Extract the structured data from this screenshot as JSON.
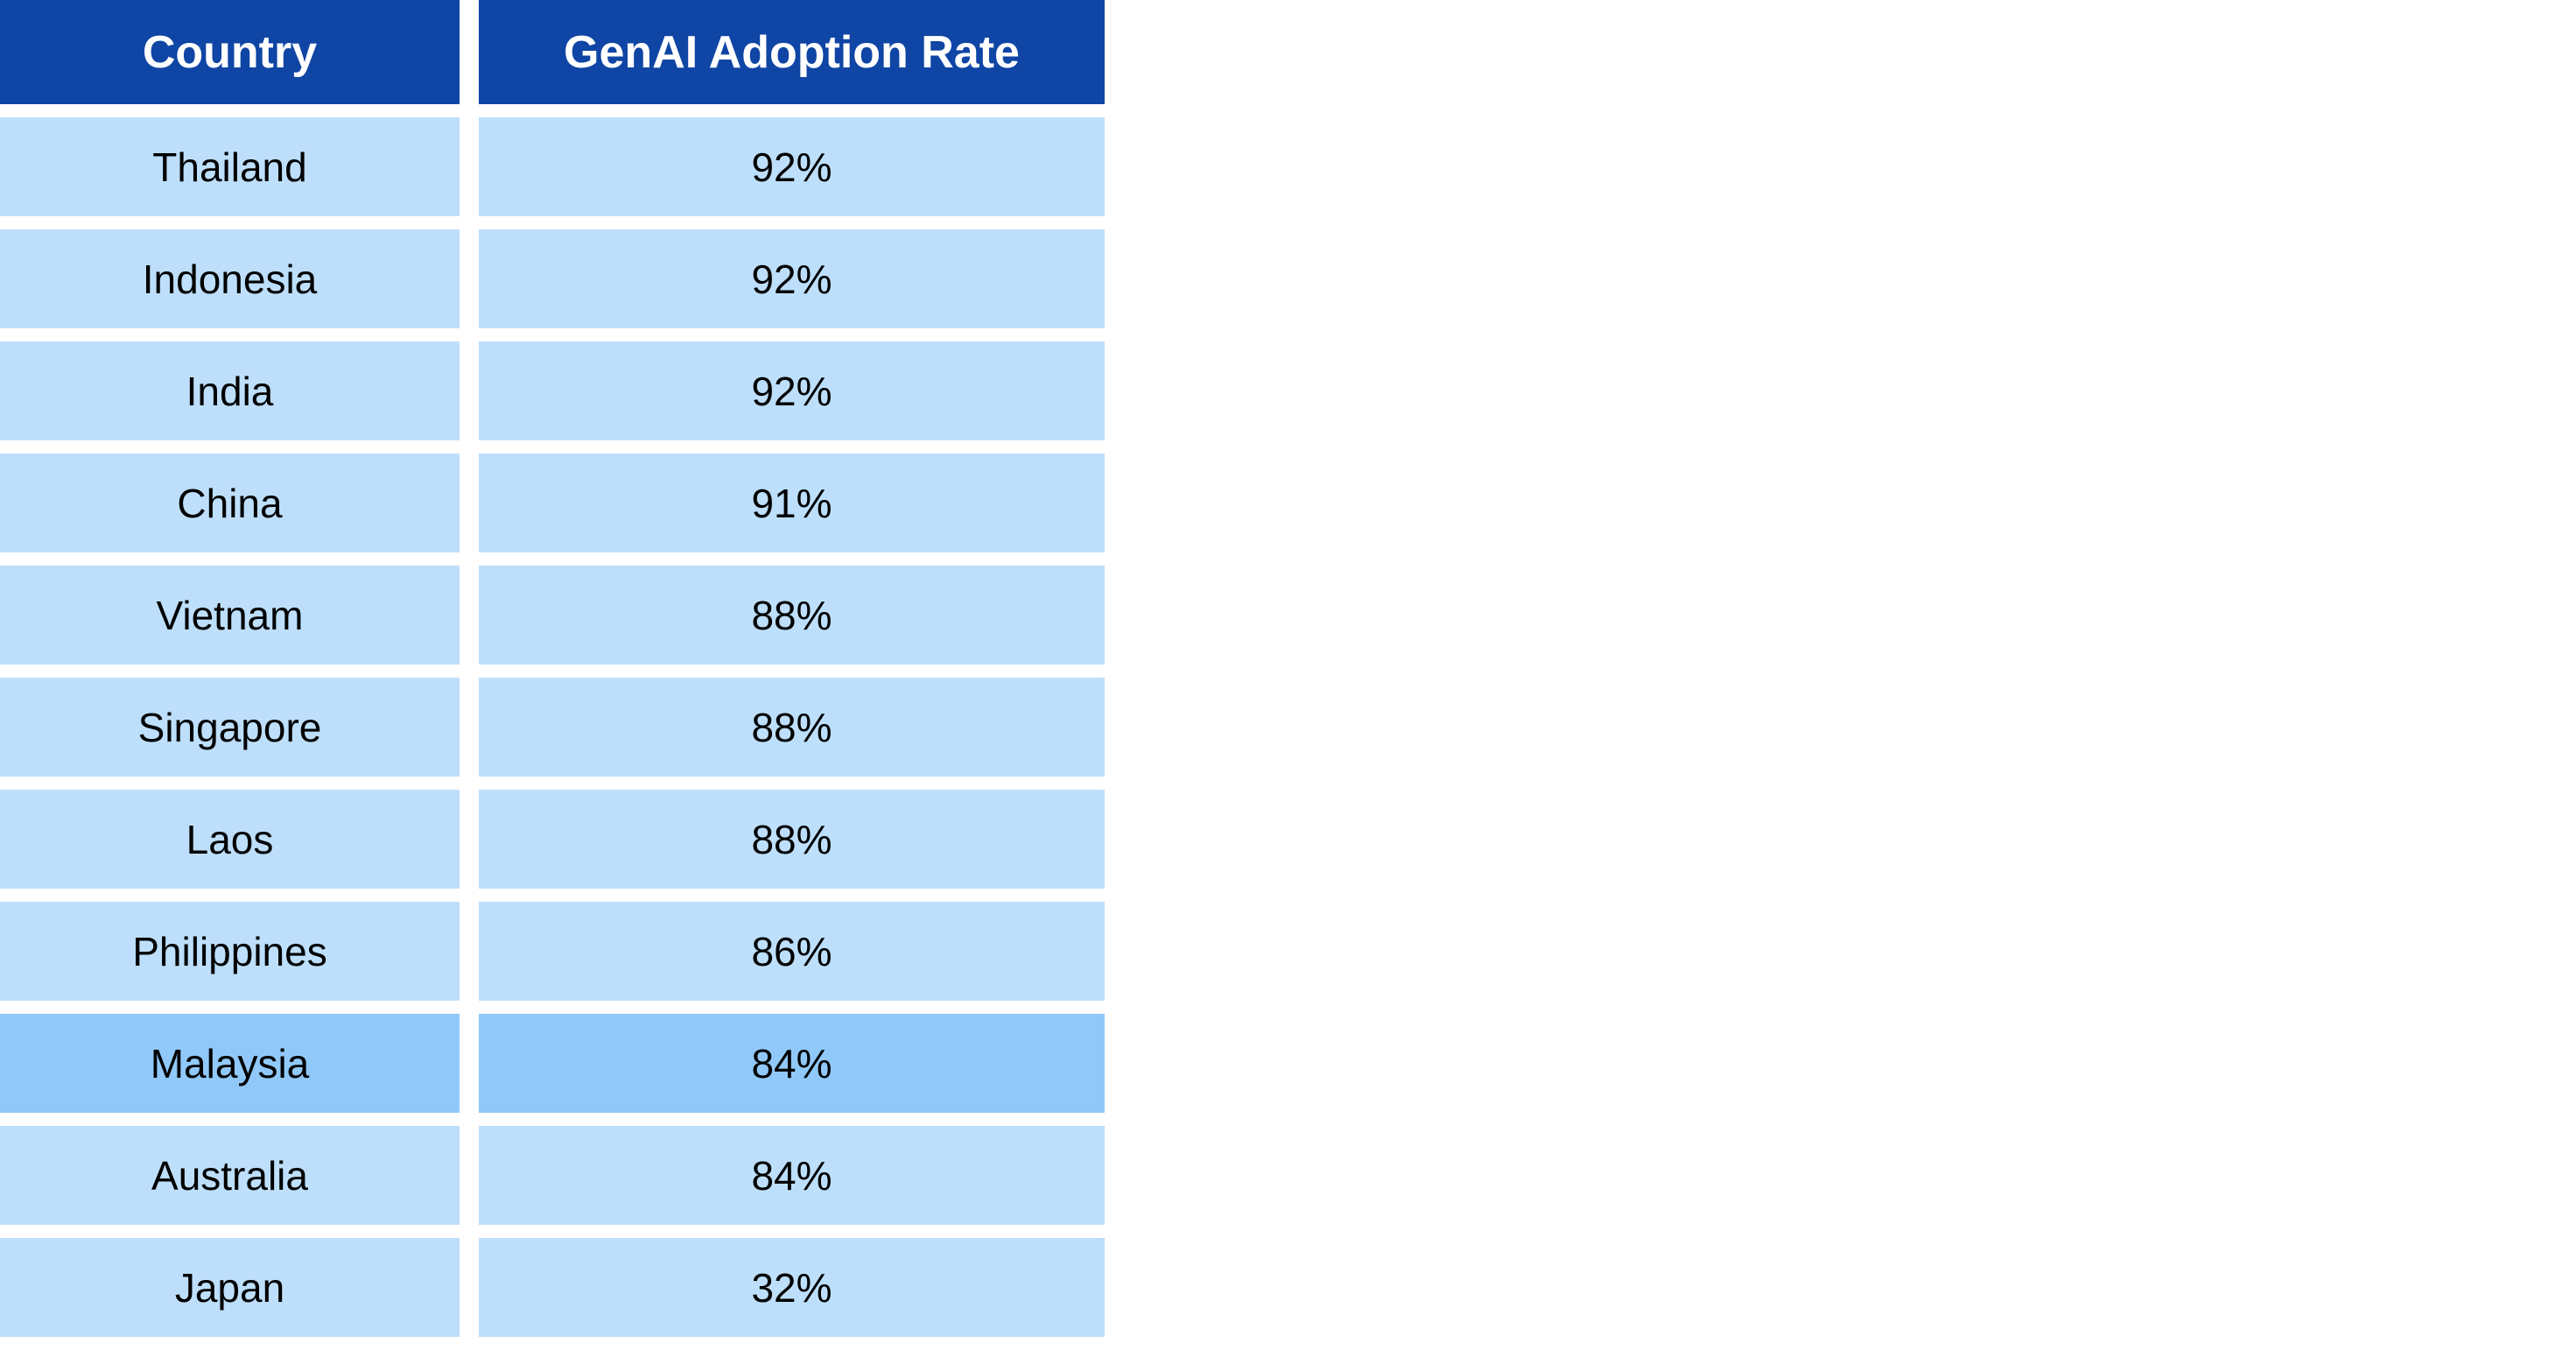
{
  "chart_data": {
    "type": "table",
    "columns": [
      "Country",
      "GenAI Adoption Rate"
    ],
    "rows": [
      {
        "country": "Thailand",
        "rate": "92%",
        "value": 92,
        "highlight": false
      },
      {
        "country": "Indonesia",
        "rate": "92%",
        "value": 92,
        "highlight": false
      },
      {
        "country": "India",
        "rate": "92%",
        "value": 92,
        "highlight": false
      },
      {
        "country": "China",
        "rate": "91%",
        "value": 91,
        "highlight": false
      },
      {
        "country": "Vietnam",
        "rate": "88%",
        "value": 88,
        "highlight": false
      },
      {
        "country": "Singapore",
        "rate": "88%",
        "value": 88,
        "highlight": false
      },
      {
        "country": "Laos",
        "rate": "88%",
        "value": 88,
        "highlight": false
      },
      {
        "country": "Philippines",
        "rate": "86%",
        "value": 86,
        "highlight": false
      },
      {
        "country": "Malaysia",
        "rate": "84%",
        "value": 84,
        "highlight": true
      },
      {
        "country": "Australia",
        "rate": "84%",
        "value": 84,
        "highlight": false
      },
      {
        "country": "Japan",
        "rate": "32%",
        "value": 32,
        "highlight": false
      }
    ]
  },
  "colors": {
    "header_bg": "#0f45a4",
    "header_fg": "#ffffff",
    "row_bg": "#bddffb",
    "highlight_bg": "#90c9f9",
    "text": "#000000"
  }
}
